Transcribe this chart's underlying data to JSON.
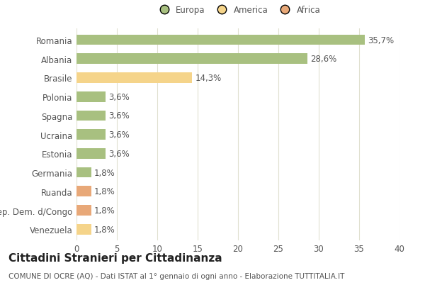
{
  "categories": [
    "Romania",
    "Albania",
    "Brasile",
    "Polonia",
    "Spagna",
    "Ucraina",
    "Estonia",
    "Germania",
    "Ruanda",
    "Rep. Dem. d/Congo",
    "Venezuela"
  ],
  "values": [
    35.7,
    28.6,
    14.3,
    3.6,
    3.6,
    3.6,
    3.6,
    1.8,
    1.8,
    1.8,
    1.8
  ],
  "labels": [
    "35,7%",
    "28,6%",
    "14,3%",
    "3,6%",
    "3,6%",
    "3,6%",
    "3,6%",
    "1,8%",
    "1,8%",
    "1,8%",
    "1,8%"
  ],
  "colors": [
    "#a8c080",
    "#a8c080",
    "#f5d48a",
    "#a8c080",
    "#a8c080",
    "#a8c080",
    "#a8c080",
    "#a8c080",
    "#e8a878",
    "#e8a878",
    "#f5d48a"
  ],
  "legend_labels": [
    "Europa",
    "America",
    "Africa"
  ],
  "legend_colors": [
    "#a8c080",
    "#f5d48a",
    "#e8a878"
  ],
  "title": "Cittadini Stranieri per Cittadinanza",
  "subtitle": "COMUNE DI OCRE (AQ) - Dati ISTAT al 1° gennaio di ogni anno - Elaborazione TUTTITALIA.IT",
  "xlim": [
    0,
    40
  ],
  "xticks": [
    0,
    5,
    10,
    15,
    20,
    25,
    30,
    35,
    40
  ],
  "background_color": "#ffffff",
  "grid_color": "#e0e0d0",
  "bar_height": 0.55,
  "label_fontsize": 8.5,
  "tick_fontsize": 8.5,
  "title_fontsize": 11,
  "subtitle_fontsize": 7.5,
  "text_color": "#555555"
}
